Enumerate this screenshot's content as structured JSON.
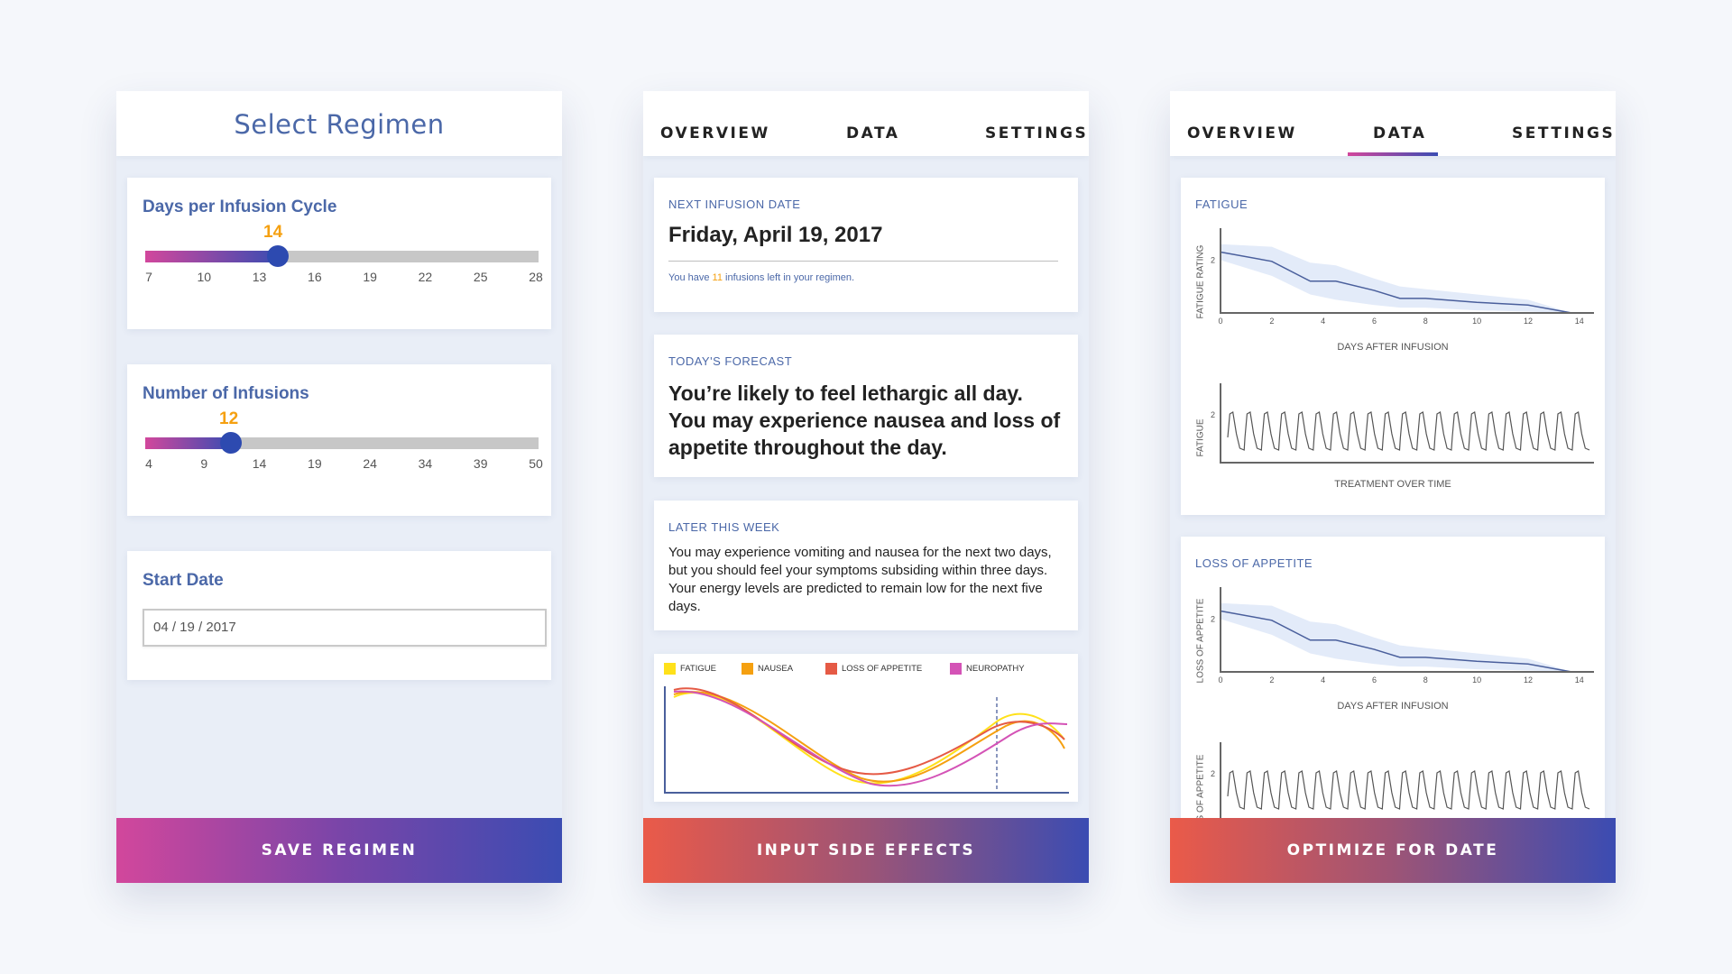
{
  "screen1": {
    "title": "Select Regimen",
    "days_slider": {
      "label": "Days per Infusion Cycle",
      "value": "14",
      "ticks": [
        "7",
        "10",
        "13",
        "16",
        "19",
        "22",
        "25",
        "28"
      ]
    },
    "infusions_slider": {
      "label": "Number of Infusions",
      "value": "12",
      "ticks": [
        "4",
        "9",
        "14",
        "19",
        "24",
        "34",
        "39",
        "50"
      ]
    },
    "start_date": {
      "label": "Start Date",
      "value": "04 / 19 / 2017"
    },
    "cta": "SAVE REGIMEN"
  },
  "screen2": {
    "tabs": [
      "OVERVIEW",
      "DATA",
      "SETTINGS"
    ],
    "next_infusion": {
      "label": "NEXT INFUSION DATE",
      "date": "Friday, April 19, 2017",
      "note_prefix": "You have ",
      "note_count": "11",
      "note_suffix": " infusions left in your regimen."
    },
    "today": {
      "label": "TODAY'S FORECAST",
      "text": "You’re likely to feel lethargic all day. You may experience nausea and loss of appetite throughout the day."
    },
    "later": {
      "label": "LATER THIS WEEK",
      "text": "You may experience vomiting and nausea for the next two days, but you should feel your symptoms subsiding within three days. Your energy levels are predicted to remain low for the next five days."
    },
    "legend": [
      {
        "name": "FATIGUE",
        "color": "#ffe11a"
      },
      {
        "name": "NAUSEA",
        "color": "#f5a010"
      },
      {
        "name": "LOSS OF APPETITE",
        "color": "#e55a45"
      },
      {
        "name": "NEUROPATHY",
        "color": "#d453b6"
      }
    ],
    "cta": "INPUT SIDE EFFECTS"
  },
  "screen3": {
    "tabs": [
      "OVERVIEW",
      "DATA",
      "SETTINGS"
    ],
    "active_tab": "DATA",
    "fatigue": {
      "label": "FATIGUE",
      "top_ylabel": "FATIGUE RATING",
      "top_xlabel": "DAYS AFTER INFUSION",
      "bottom_ylabel": "FATIGUE",
      "bottom_xlabel": "TREATMENT OVER TIME"
    },
    "appetite": {
      "label": "LOSS OF APPETITE",
      "top_ylabel": "LOSS OF APPETITE",
      "top_xlabel": "DAYS AFTER INFUSION",
      "bottom_ylabel": "LOSS OF APPETITE"
    },
    "cta": "OPTIMIZE FOR DATE"
  },
  "chart_data": [
    {
      "type": "line",
      "title": "",
      "xlabel": "DAYS AFTER INFUSION",
      "ylabel": "FATIGUE RATING",
      "x": [
        0,
        2,
        3.5,
        4.5,
        6,
        7,
        8,
        10,
        12,
        13.7
      ],
      "y": [
        2.3,
        1.95,
        1.2,
        1.2,
        0.85,
        0.55,
        0.55,
        0.4,
        0.3,
        0
      ],
      "band_upper": [
        2.6,
        2.5,
        1.9,
        1.8,
        1.3,
        1.0,
        0.9,
        0.7,
        0.5,
        0
      ],
      "band_lower": [
        2.0,
        1.4,
        0.7,
        0.5,
        0.3,
        0.2,
        0.2,
        0.1,
        0.05,
        0
      ],
      "xticks": [
        "0",
        "2",
        "4",
        "6",
        "8",
        "10",
        "12",
        "14"
      ],
      "yticks": [
        "2"
      ],
      "xlim": [
        0,
        14.5
      ],
      "ylim": [
        0,
        3
      ]
    },
    {
      "type": "line",
      "title": "",
      "xlabel": "TREATMENT OVER TIME",
      "ylabel": "FATIGUE",
      "cycles": 21,
      "yticks": [
        "2"
      ]
    },
    {
      "type": "line",
      "title": "",
      "xlabel": "DAYS AFTER INFUSION",
      "ylabel": "LOSS OF APPETITE",
      "x": [
        0,
        2,
        3.5,
        4.5,
        6,
        7,
        8,
        10,
        12,
        13.7
      ],
      "y": [
        2.3,
        1.95,
        1.2,
        1.2,
        0.85,
        0.55,
        0.55,
        0.4,
        0.3,
        0
      ],
      "band_upper": [
        2.6,
        2.5,
        1.9,
        1.8,
        1.3,
        1.0,
        0.9,
        0.7,
        0.5,
        0
      ],
      "band_lower": [
        2.0,
        1.4,
        0.7,
        0.5,
        0.3,
        0.2,
        0.2,
        0.1,
        0.05,
        0
      ],
      "xticks": [
        "0",
        "2",
        "4",
        "6",
        "8",
        "10",
        "12",
        "14"
      ],
      "yticks": [
        "2"
      ],
      "xlim": [
        0,
        14.5
      ],
      "ylim": [
        0,
        3
      ]
    }
  ]
}
